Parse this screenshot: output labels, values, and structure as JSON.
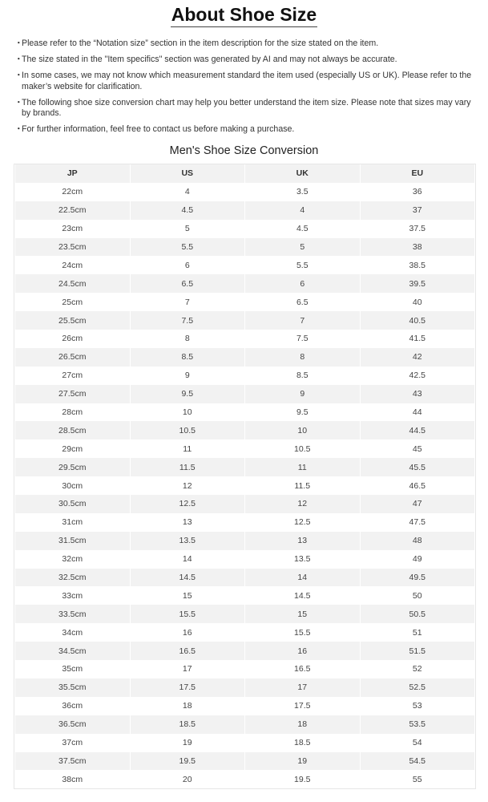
{
  "title": "About Shoe Size",
  "notes": [
    "Please refer to the “Notation size” section in the item description for the size stated on the item.",
    "The size stated in the \"Item specifics\" section was generated by AI and may not always be accurate.",
    "In some cases, we may not know which measurement standard the item used (especially US or UK). Please refer to the maker’s website for clarification.",
    "The following shoe size conversion chart may help you better understand the item size. Please note that sizes may vary by brands.",
    "For further information, feel free to contact us before making a purchase."
  ],
  "bullet": "・",
  "table": {
    "title": "Men's Shoe Size Conversion",
    "headers": [
      "JP",
      "US",
      "UK",
      "EU"
    ],
    "rows": [
      [
        "22cm",
        "4",
        "3.5",
        "36"
      ],
      [
        "22.5cm",
        "4.5",
        "4",
        "37"
      ],
      [
        "23cm",
        "5",
        "4.5",
        "37.5"
      ],
      [
        "23.5cm",
        "5.5",
        "5",
        "38"
      ],
      [
        "24cm",
        "6",
        "5.5",
        "38.5"
      ],
      [
        "24.5cm",
        "6.5",
        "6",
        "39.5"
      ],
      [
        "25cm",
        "7",
        "6.5",
        "40"
      ],
      [
        "25.5cm",
        "7.5",
        "7",
        "40.5"
      ],
      [
        "26cm",
        "8",
        "7.5",
        "41.5"
      ],
      [
        "26.5cm",
        "8.5",
        "8",
        "42"
      ],
      [
        "27cm",
        "9",
        "8.5",
        "42.5"
      ],
      [
        "27.5cm",
        "9.5",
        "9",
        "43"
      ],
      [
        "28cm",
        "10",
        "9.5",
        "44"
      ],
      [
        "28.5cm",
        "10.5",
        "10",
        "44.5"
      ],
      [
        "29cm",
        "11",
        "10.5",
        "45"
      ],
      [
        "29.5cm",
        "11.5",
        "11",
        "45.5"
      ],
      [
        "30cm",
        "12",
        "11.5",
        "46.5"
      ],
      [
        "30.5cm",
        "12.5",
        "12",
        "47"
      ],
      [
        "31cm",
        "13",
        "12.5",
        "47.5"
      ],
      [
        "31.5cm",
        "13.5",
        "13",
        "48"
      ],
      [
        "32cm",
        "14",
        "13.5",
        "49"
      ],
      [
        "32.5cm",
        "14.5",
        "14",
        "49.5"
      ],
      [
        "33cm",
        "15",
        "14.5",
        "50"
      ],
      [
        "33.5cm",
        "15.5",
        "15",
        "50.5"
      ],
      [
        "34cm",
        "16",
        "15.5",
        "51"
      ],
      [
        "34.5cm",
        "16.5",
        "16",
        "51.5"
      ],
      [
        "35cm",
        "17",
        "16.5",
        "52"
      ],
      [
        "35.5cm",
        "17.5",
        "17",
        "52.5"
      ],
      [
        "36cm",
        "18",
        "17.5",
        "53"
      ],
      [
        "36.5cm",
        "18.5",
        "18",
        "53.5"
      ],
      [
        "37cm",
        "19",
        "18.5",
        "54"
      ],
      [
        "37.5cm",
        "19.5",
        "19",
        "54.5"
      ],
      [
        "38cm",
        "20",
        "19.5",
        "55"
      ]
    ]
  },
  "colors": {
    "row_alt": "#f2f2f2",
    "text": "#444444"
  }
}
